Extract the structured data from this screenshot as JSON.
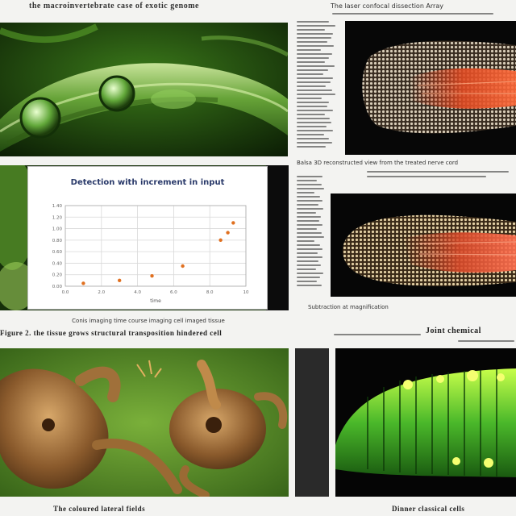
{
  "page": {
    "top_title": "the macroinvertebrate case of exotic genome",
    "top_right_caption": "The laser confocal dissection Array",
    "mid_right_caption": "Balsa 3D reconstructed view from the treated nerve cord",
    "mid_caption_line1": "Conis imaging time course imaging cell imaged tissue",
    "mid_caption_line2": "Figure 2. the tissue grows structural transposition hindered cell",
    "mid_right_small": "Subtraction at magnification",
    "right_heading": "Joint chemical",
    "bottom_left_caption": "The coloured lateral fields",
    "bottom_right_caption": "Dinner classical cells"
  },
  "chart_data": {
    "type": "scatter",
    "title": "Detection with increment in input",
    "xlabel": "time",
    "ylabel": "",
    "xlim": [
      0,
      10
    ],
    "ylim": [
      0,
      1.4
    ],
    "x_ticks": [
      "0.0",
      "2.0",
      "4.0",
      "6.0",
      "8.0",
      "10"
    ],
    "y_ticks": [
      "0.00",
      "0.20",
      "0.40",
      "0.60",
      "0.80",
      "1.00",
      "1.20",
      "1.40"
    ],
    "points": [
      {
        "x": 1.0,
        "y": 0.05
      },
      {
        "x": 3.0,
        "y": 0.1
      },
      {
        "x": 4.8,
        "y": 0.18
      },
      {
        "x": 6.5,
        "y": 0.35
      },
      {
        "x": 8.6,
        "y": 0.8
      },
      {
        "x": 9.0,
        "y": 0.93
      },
      {
        "x": 9.3,
        "y": 1.1
      }
    ],
    "grid": true,
    "point_color": "#e07020"
  }
}
